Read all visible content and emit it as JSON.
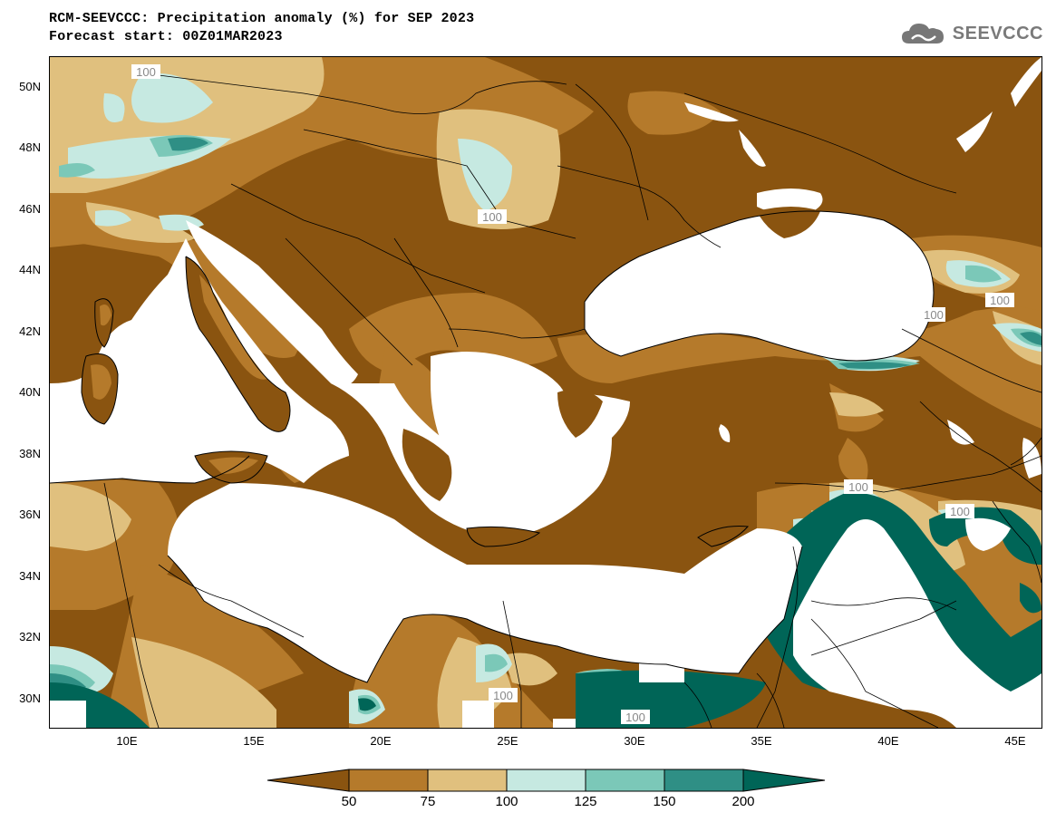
{
  "title": "RCM-SEEVCCC: Precipitation anomaly (%) for SEP 2023",
  "subtitle": "Forecast start: 00Z01MAR2023",
  "logo": {
    "text": "SEEVCCC",
    "icon": "cloud-icon"
  },
  "map": {
    "lat_labels": [
      "50N",
      "48N",
      "46N",
      "44N",
      "42N",
      "40N",
      "38N",
      "36N",
      "34N",
      "32N",
      "30N"
    ],
    "lon_labels": [
      "10E",
      "15E",
      "20E",
      "25E",
      "30E",
      "35E",
      "40E",
      "45E"
    ],
    "contour_labels": [
      "100",
      "100",
      "100",
      "100",
      "100",
      "100",
      "100",
      "100"
    ],
    "colors": {
      "below_50": "#8a5410",
      "50_75": "#b57a2b",
      "75_100": "#e0c07e",
      "100_125": "#c6e9e1",
      "125_150": "#7bc8b8",
      "150_200": "#2f8f85",
      "above_200": "#006557",
      "water": "#ffffff"
    }
  },
  "colorbar": {
    "ticks": [
      "50",
      "75",
      "100",
      "125",
      "150",
      "200"
    ],
    "colors": [
      "#8a5410",
      "#b57a2b",
      "#e0c07e",
      "#c6e9e1",
      "#7bc8b8",
      "#2f8f85",
      "#006557"
    ]
  }
}
